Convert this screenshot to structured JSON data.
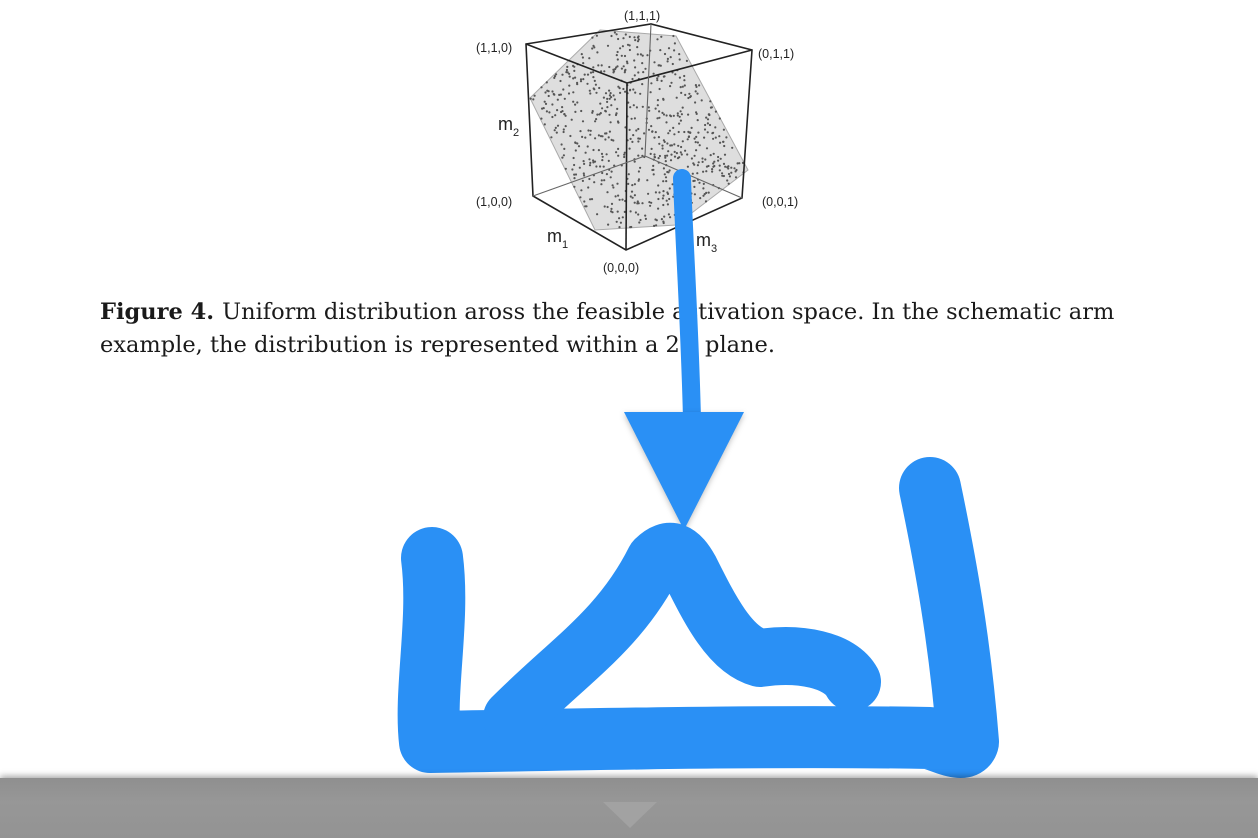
{
  "figure": {
    "vertices": {
      "top": "(1,1,1)",
      "top_left": "(1,1,0)",
      "top_right": "(0,1,1)",
      "bottom_left": "(1,0,0)",
      "bottom_right": "(0,0,1)",
      "bottom": "(0,0,0)"
    },
    "axes": {
      "m1": {
        "base": "m",
        "sub": "1"
      },
      "m2": {
        "base": "m",
        "sub": "2"
      },
      "m3": {
        "base": "m",
        "sub": "3"
      }
    },
    "caption_label": "Figure 4.",
    "caption_text": "Uniform distribution aross the feasible activation space. In the schematic arm example, the distribution is represented within a 2D plane."
  },
  "annotation": {
    "color": "#2a90f5",
    "arrow": "down-arrow",
    "scribble": "handwritten-ink-stroke"
  },
  "viewer": {
    "bottom_bar_icon": "chevron-down-icon"
  }
}
